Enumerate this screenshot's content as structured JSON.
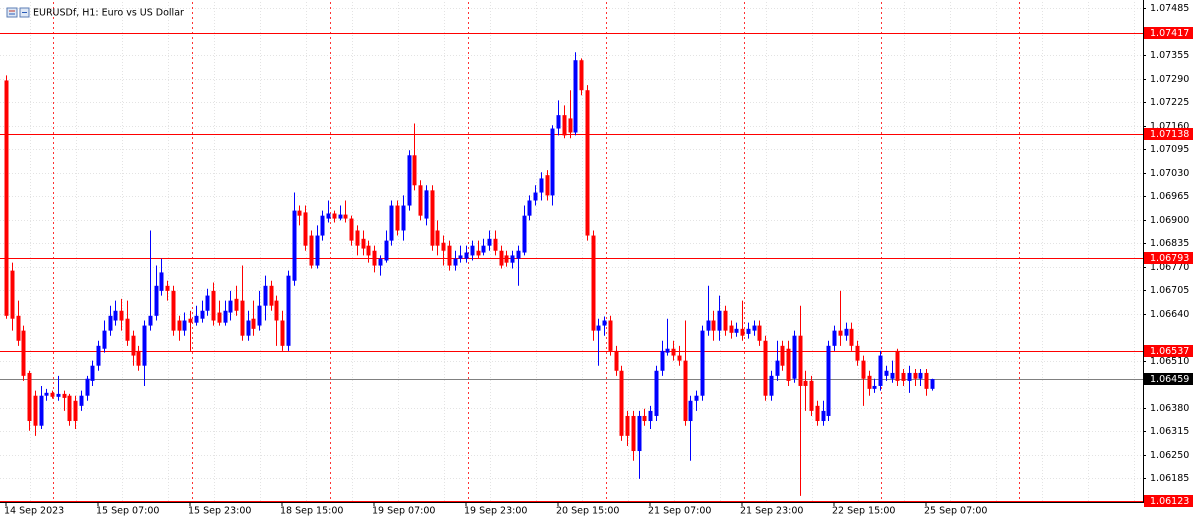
{
  "chart_data": {
    "type": "candlestick",
    "title": "EURUSDf, H1:  Euro vs US Dollar",
    "up_color": "#0000ff",
    "down_color": "#ff0000",
    "grid": true,
    "ylim": [
      1.06119,
      1.07502
    ],
    "yticks": [
      1.07485,
      1.07355,
      {
        "value": 1.0729,
        "label": "1.07290"
      },
      1.07225,
      {
        "value": 1.0716,
        "label": "1.07160"
      },
      1.07095,
      {
        "value": 1.0703,
        "label": "1.07030"
      },
      1.06965,
      {
        "value": 1.069,
        "label": "1.06900"
      },
      1.06835,
      {
        "value": 1.0677,
        "label": "1.06770"
      },
      1.06705,
      {
        "value": 1.0664,
        "label": "1.06640"
      },
      {
        "value": 1.0651,
        "label": "1.06510"
      },
      {
        "value": 1.0638,
        "label": "1.06380"
      },
      1.06315,
      {
        "value": 1.0625,
        "label": "1.06250"
      },
      1.06185
    ],
    "price_lines": [
      1.07417,
      1.07138,
      1.06793,
      1.06537,
      1.06123
    ],
    "price_line_color": "#ff0000",
    "current_price": 1.06459,
    "categories": [
      "14 Sep 2023",
      null,
      null,
      null,
      null,
      null,
      null,
      null,
      null,
      null,
      null,
      null,
      null,
      null,
      null,
      null,
      "15 Sep 07:00",
      null,
      null,
      null,
      null,
      null,
      null,
      null,
      null,
      null,
      null,
      null,
      null,
      null,
      null,
      null,
      "15 Sep 23:00",
      null,
      null,
      null,
      null,
      null,
      null,
      null,
      null,
      null,
      null,
      null,
      null,
      null,
      null,
      null,
      "18 Sep 15:00",
      null,
      null,
      null,
      null,
      null,
      null,
      null,
      null,
      null,
      null,
      null,
      null,
      null,
      null,
      null,
      "19 Sep 07:00",
      null,
      null,
      null,
      null,
      null,
      null,
      null,
      null,
      null,
      null,
      null,
      null,
      null,
      null,
      null,
      "19 Sep 23:00",
      null,
      null,
      null,
      null,
      null,
      null,
      null,
      null,
      null,
      null,
      null,
      null,
      null,
      null,
      null,
      "20 Sep 15:00",
      null,
      null,
      null,
      null,
      null,
      null,
      null,
      null,
      null,
      null,
      null,
      null,
      null,
      null,
      null,
      "21 Sep 07:00",
      null,
      null,
      null,
      null,
      null,
      null,
      null,
      null,
      null,
      null,
      null,
      null,
      null,
      null,
      null,
      "21 Sep 23:00",
      null,
      null,
      null,
      null,
      null,
      null,
      null,
      null,
      null,
      null,
      null,
      null,
      null,
      null,
      null,
      "22 Sep 15:00",
      null,
      null,
      null,
      null,
      null,
      null,
      null,
      null,
      null,
      null,
      null,
      null,
      null,
      null,
      null,
      "25 Sep 07:00",
      null
    ],
    "open": [
      1.07285,
      1.06759,
      1.06634,
      1.06593,
      1.06476,
      1.06413,
      1.0633,
      1.06413,
      1.06421,
      1.0641,
      1.06418,
      1.06413,
      1.06399,
      1.06385,
      1.06413,
      1.06454,
      1.06496,
      1.06543,
      1.06593,
      1.06621,
      1.06648,
      1.06626,
      1.06579,
      1.06537,
      1.06496,
      1.06607,
      1.06634,
      1.06703,
      1.06717,
      1.06703,
      1.06621,
      1.06593,
      1.06626,
      1.06615,
      1.06626,
      1.06648,
      1.06703,
      1.06643,
      1.06615,
      1.06643,
      1.06681,
      1.06676,
      1.06579,
      1.06626,
      1.06607,
      1.06662,
      1.06717,
      1.06676,
      1.06621,
      1.06551,
      1.06731,
      1.06925,
      1.0692,
      1.06856,
      1.06773,
      1.06856,
      1.06903,
      1.06917,
      1.06903,
      1.06914,
      1.06903,
      1.0687,
      1.06847,
      1.06828,
      1.06814,
      1.06773,
      1.06787,
      1.06842,
      1.06939,
      1.0687,
      1.06939,
      1.07078,
      1.06995,
      1.06903,
      1.06981,
      1.0687,
      1.06836,
      1.06828,
      1.06773,
      1.06792,
      1.06792,
      1.06801,
      1.06814,
      1.06809,
      1.06828,
      1.06847,
      1.06814,
      1.06801,
      1.06781,
      1.06792,
      1.06809,
      1.06911,
      1.06953,
      1.06975,
      1.07023,
      1.06967,
      1.07152,
      1.07189,
      1.0718,
      1.07141,
      1.07341,
      1.07258,
      1.06856,
      1.06593,
      1.06607,
      1.06621,
      1.06537,
      1.06482,
      1.06357,
      1.06357,
      1.0626,
      1.06357,
      1.06343,
      1.06357,
      1.06482,
      1.06532,
      1.06543,
      1.06524,
      1.0651,
      1.06343,
      1.06399,
      1.06413,
      1.06593,
      1.06621,
      1.06593,
      1.06648,
      1.06607,
      1.06587,
      1.06598,
      1.06584,
      1.06593,
      1.06607,
      1.06565,
      1.06413,
      1.06468,
      1.06551,
      1.06543,
      1.0646,
      1.06579,
      1.06454,
      1.06454,
      1.06385,
      1.06343,
      1.06357,
      1.06551,
      1.06593,
      1.06579,
      1.06598,
      1.06551,
      1.0651,
      1.06468,
      1.06432,
      1.0644,
      1.06468,
      1.0646,
      1.06537,
      1.06476,
      1.06454,
      1.06476,
      1.0646,
      1.06476,
      1.06432
    ],
    "high": [
      1.07299,
      1.06781,
      1.06676,
      1.06607,
      1.06482,
      1.06427,
      1.0644,
      1.06432,
      1.06427,
      1.06468,
      1.06427,
      1.06418,
      1.06413,
      1.06427,
      1.06468,
      1.0651,
      1.06565,
      1.06621,
      1.06662,
      1.06676,
      1.06681,
      1.06676,
      1.06593,
      1.06551,
      1.06621,
      1.0687,
      1.06773,
      1.06792,
      1.06731,
      1.06717,
      1.06634,
      1.06643,
      1.06648,
      1.06662,
      1.06676,
      1.06709,
      1.06726,
      1.06676,
      1.06676,
      1.06703,
      1.06717,
      1.06773,
      1.06648,
      1.06676,
      1.06703,
      1.06745,
      1.06731,
      1.0669,
      1.06648,
      1.06759,
      1.06975,
      1.06939,
      1.06939,
      1.0687,
      1.06884,
      1.06925,
      1.06953,
      1.06925,
      1.06939,
      1.06953,
      1.06911,
      1.06884,
      1.0687,
      1.06842,
      1.06828,
      1.06801,
      1.0687,
      1.06953,
      1.06953,
      1.06967,
      1.07092,
      1.07166,
      1.07009,
      1.06995,
      1.06995,
      1.06898,
      1.06856,
      1.06842,
      1.06814,
      1.06828,
      1.06828,
      1.06842,
      1.06842,
      1.06847,
      1.0687,
      1.0687,
      1.06828,
      1.06814,
      1.06814,
      1.06828,
      1.06939,
      1.06967,
      1.06995,
      1.07031,
      1.07037,
      1.07161,
      1.0723,
      1.07216,
      1.07258,
      1.07363,
      1.07346,
      1.07272,
      1.0687,
      1.06626,
      1.06632,
      1.06634,
      1.06551,
      1.06496,
      1.06371,
      1.06371,
      1.06371,
      1.06377,
      1.06385,
      1.06496,
      1.06565,
      1.06626,
      1.06565,
      1.06551,
      1.06621,
      1.06413,
      1.06427,
      1.06607,
      1.06717,
      1.06648,
      1.0669,
      1.06662,
      1.06621,
      1.06615,
      1.06676,
      1.06615,
      1.06621,
      1.06621,
      1.06579,
      1.06482,
      1.06565,
      1.06565,
      1.06565,
      1.06593,
      1.06662,
      1.06482,
      1.06468,
      1.06399,
      1.06399,
      1.06565,
      1.06607,
      1.06703,
      1.06615,
      1.06615,
      1.06565,
      1.06524,
      1.06482,
      1.0646,
      1.06537,
      1.06496,
      1.0651,
      1.06543,
      1.06487,
      1.06496,
      1.06487,
      1.06487,
      1.06487,
      1.0646
    ],
    "low": [
      1.06626,
      1.06593,
      1.06551,
      1.06454,
      1.06316,
      1.06302,
      1.06321,
      1.06399,
      1.06405,
      1.06399,
      1.06371,
      1.0633,
      1.06321,
      1.06371,
      1.06399,
      1.0644,
      1.06482,
      1.06532,
      1.06579,
      1.06607,
      1.06593,
      1.06551,
      1.06496,
      1.06482,
      1.0644,
      1.06593,
      1.06621,
      1.0669,
      1.06676,
      1.06579,
      1.06565,
      1.06579,
      1.06537,
      1.06607,
      1.06615,
      1.06634,
      1.06607,
      1.06607,
      1.06607,
      1.06621,
      1.06634,
      1.06565,
      1.06565,
      1.06579,
      1.06593,
      1.06621,
      1.06648,
      1.06551,
      1.06537,
      1.06537,
      1.06717,
      1.06884,
      1.06814,
      1.06765,
      1.06765,
      1.06842,
      1.06892,
      1.06892,
      1.06898,
      1.06892,
      1.06828,
      1.06801,
      1.06801,
      1.06781,
      1.06754,
      1.06745,
      1.06781,
      1.06828,
      1.06856,
      1.06842,
      1.06925,
      1.06981,
      1.06898,
      1.06884,
      1.06814,
      1.06801,
      1.06773,
      1.06759,
      1.06759,
      1.06781,
      1.06781,
      1.06787,
      1.06792,
      1.06801,
      1.06814,
      1.06801,
      1.06765,
      1.0677,
      1.06765,
      1.06717,
      1.06801,
      1.06898,
      1.06939,
      1.06953,
      1.06953,
      1.06939,
      1.07133,
      1.07125,
      1.07125,
      1.07133,
      1.07244,
      1.06842,
      1.06565,
      1.06496,
      1.06579,
      1.06524,
      1.06468,
      1.06288,
      1.06274,
      1.06233,
      1.06183,
      1.0633,
      1.06321,
      1.06343,
      1.06468,
      1.06524,
      1.0651,
      1.06496,
      1.0633,
      1.06233,
      1.06371,
      1.06399,
      1.06579,
      1.06565,
      1.06565,
      1.06579,
      1.06571,
      1.06576,
      1.06565,
      1.06571,
      1.06579,
      1.06551,
      1.06399,
      1.06399,
      1.06454,
      1.06482,
      1.0644,
      1.06449,
      1.06136,
      1.06371,
      1.06357,
      1.0633,
      1.0633,
      1.06343,
      1.06537,
      1.06551,
      1.06565,
      1.06537,
      1.06496,
      1.06385,
      1.06413,
      1.06421,
      1.06427,
      1.06454,
      1.06449,
      1.0644,
      1.0644,
      1.06421,
      1.0644,
      1.0644,
      1.06413,
      1.06427
    ],
    "close": [
      1.06634,
      1.06626,
      1.06565,
      1.06468,
      1.06343,
      1.0633,
      1.06413,
      1.06421,
      1.0641,
      1.06418,
      1.06407,
      1.06343,
      1.06343,
      1.06413,
      1.0646,
      1.06496,
      1.06551,
      1.06593,
      1.06634,
      1.06648,
      1.06621,
      1.06565,
      1.06524,
      1.06496,
      1.06607,
      1.06634,
      1.06717,
      1.06754,
      1.06703,
      1.06593,
      1.06593,
      1.06621,
      1.06615,
      1.06634,
      1.06648,
      1.0669,
      1.06621,
      1.06615,
      1.06648,
      1.06676,
      1.06648,
      1.06579,
      1.06621,
      1.06598,
      1.06662,
      1.06717,
      1.06662,
      1.06621,
      1.06551,
      1.06745,
      1.06925,
      1.06911,
      1.06828,
      1.06773,
      1.06856,
      1.06911,
      1.06917,
      1.06903,
      1.06914,
      1.06903,
      1.06842,
      1.06828,
      1.0682,
      1.06801,
      1.06773,
      1.06792,
      1.06842,
      1.06939,
      1.0687,
      1.06939,
      1.07078,
      1.06995,
      1.06911,
      1.06981,
      1.06828,
      1.06828,
      1.06814,
      1.06773,
      1.06792,
      1.06801,
      1.06809,
      1.06828,
      1.06801,
      1.06828,
      1.06847,
      1.06814,
      1.06773,
      1.06781,
      1.06801,
      1.06814,
      1.06911,
      1.06953,
      1.06975,
      1.07014,
      1.06967,
      1.07152,
      1.07189,
      1.07133,
      1.07141,
      1.07341,
      1.07258,
      1.06856,
      1.06593,
      1.06607,
      1.06621,
      1.06537,
      1.06482,
      1.06302,
      1.06302,
      1.0626,
      1.06357,
      1.06343,
      1.06371,
      1.06482,
      1.06537,
      1.06543,
      1.06524,
      1.0651,
      1.06343,
      1.06399,
      1.06413,
      1.06593,
      1.06621,
      1.06593,
      1.06648,
      1.06593,
      1.06587,
      1.06598,
      1.06579,
      1.06598,
      1.06607,
      1.06565,
      1.06413,
      1.06468,
      1.0651,
      1.06496,
      1.06454,
      1.06579,
      1.0644,
      1.0644,
      1.06371,
      1.06343,
      1.06371,
      1.06551,
      1.06593,
      1.06579,
      1.06598,
      1.06551,
      1.0651,
      1.0646,
      1.06432,
      1.0644,
      1.06524,
      1.06482,
      1.06476,
      1.06454,
      1.06454,
      1.06476,
      1.0646,
      1.06476,
      1.06432,
      1.06459
    ]
  }
}
